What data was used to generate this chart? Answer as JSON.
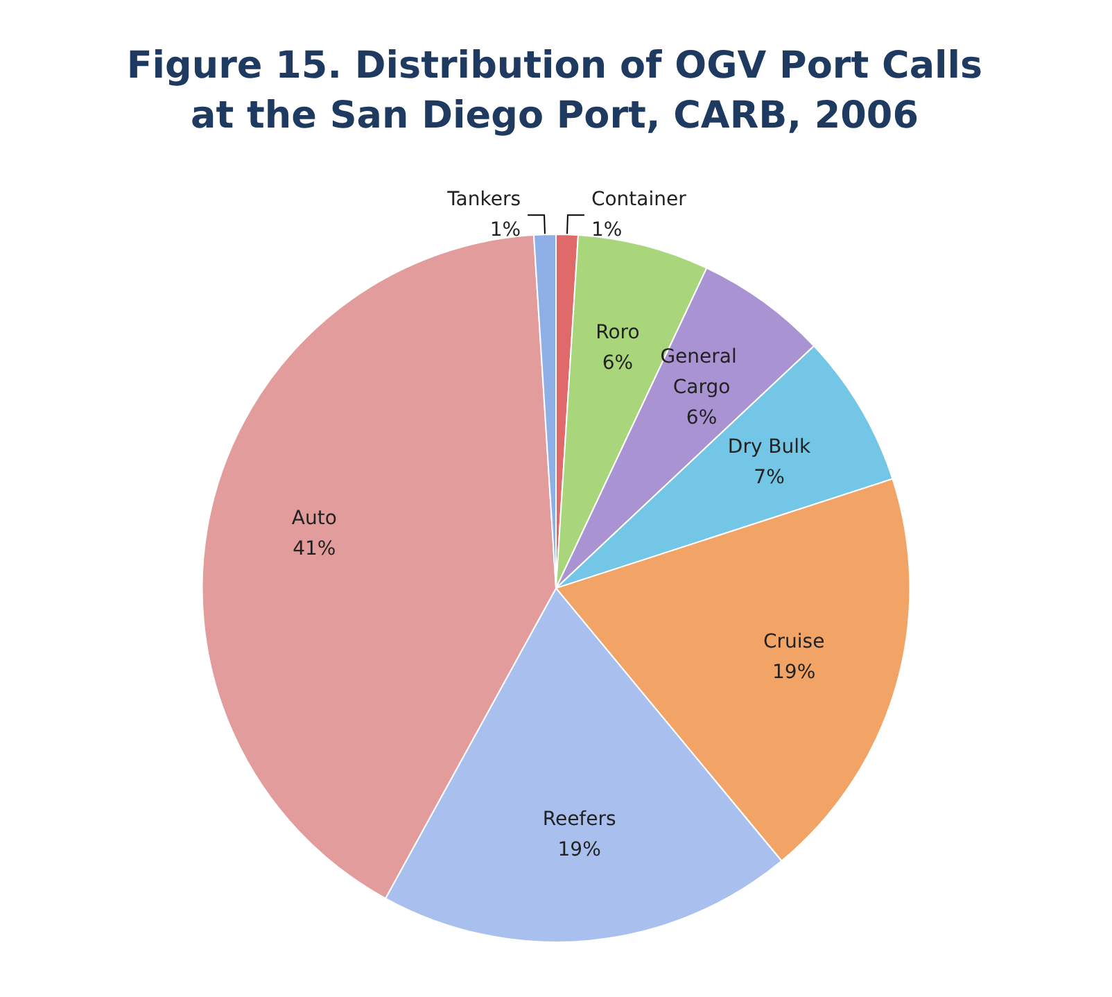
{
  "chart_data": {
    "type": "pie",
    "title": "Figure 15. Distribution of OGV Port Calls at the San Diego Port, CARB, 2006",
    "categories": [
      "Container",
      "Roro",
      "General Cargo",
      "Dry Bulk",
      "Cruise",
      "Reefers",
      "Auto",
      "Tankers"
    ],
    "values": [
      1,
      6,
      6,
      7,
      19,
      19,
      41,
      1
    ],
    "colors": [
      "#e06a6a",
      "#a9d67a",
      "#a993d2",
      "#74c6e6",
      "#f2a466",
      "#a9c0ee",
      "#e39c9c",
      "#8fb0e6"
    ],
    "legend": false,
    "value_labels": [
      "1%",
      "6%",
      "6%",
      "7%",
      "19%",
      "19%",
      "41%",
      "1%"
    ]
  }
}
